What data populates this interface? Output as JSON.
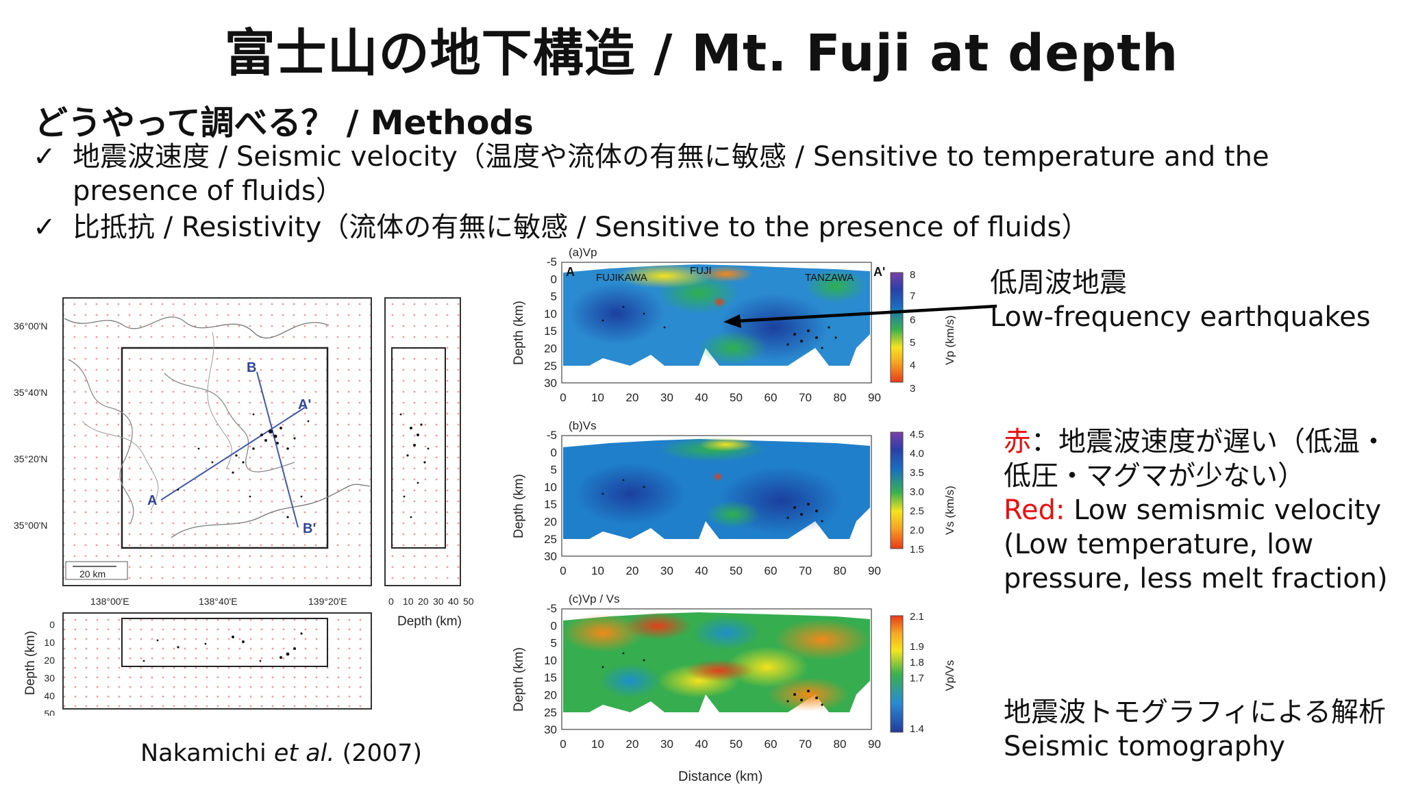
{
  "title": "富士山の地下構造 / Mt. Fuji at depth",
  "subheading": "どうやって調べる？ / Methods",
  "bullets": [
    {
      "check": "✓",
      "text": "地震波速度 / Seismic velocity（温度や流体の有無に敏感 / Sensitive to temperature and the presence of fluids）"
    },
    {
      "check": "✓",
      "text": "比抵抗 / Resistivity（流体の有無に敏感 / Sensitive to the presence of fluids）"
    }
  ],
  "annotation_lf": {
    "jp": "低周波地震",
    "en": "Low-frequency earthquakes"
  },
  "annotation_red": {
    "red_label_jp": "赤",
    "jp": "：地震波速度が遅い（低温・低圧・マグマが少ない）",
    "red_label_en": "Red:",
    "en": " Low semismic velocity (Low temperature, low pressure, less melt fraction)"
  },
  "annotation_tomo": {
    "jp": "地震波トモグラフィによる解析",
    "en": "Seismic tomography"
  },
  "citation": {
    "author": "Nakamichi",
    "etal": "et al.",
    "year": "(2007)"
  },
  "map": {
    "lat_labels": [
      "36°00'N",
      "35°40'N",
      "35°20'N",
      "35°00'N"
    ],
    "lon_labels": [
      "138°00'E",
      "138°40'E",
      "139°20'E"
    ],
    "scale_label": "20 km",
    "points": {
      "A": "A",
      "A_prime": "A'",
      "B": "B",
      "B_prime": "B'"
    },
    "side_depth_ticks": [
      "0",
      "10",
      "20",
      "30",
      "40",
      "50"
    ],
    "side_xlabel": "Depth (km)",
    "bottom_depth_ticks": [
      "0",
      "10",
      "20",
      "30",
      "40",
      "50"
    ],
    "bottom_ylabel": "Depth (km)"
  },
  "panels": [
    {
      "label": "(a)Vp",
      "left_label": "A",
      "right_label": "A'",
      "places": [
        "FUJIKAWA",
        "FUJI",
        "TANZAWA"
      ],
      "colorbar_ticks": [
        "8",
        "7",
        "6",
        "5",
        "4",
        "3"
      ],
      "colorbar_label": "Vp (km/s)"
    },
    {
      "label": "(b)Vs",
      "colorbar_ticks": [
        "4.5",
        "4.0",
        "3.5",
        "3.0",
        "2.5",
        "2.0",
        "1.5"
      ],
      "colorbar_label": "Vs (km/s)"
    },
    {
      "label": "(c)Vp / Vs",
      "colorbar_ticks": [
        "2.1",
        "1.9",
        "1.8",
        "1.7",
        "1.4"
      ],
      "colorbar_label": "Vp/Vs"
    }
  ],
  "section_axes": {
    "depth_ticks": [
      "-5",
      "0",
      "5",
      "10",
      "15",
      "20",
      "25",
      "30"
    ],
    "distance_ticks": [
      "0",
      "10",
      "20",
      "30",
      "40",
      "50",
      "60",
      "70",
      "80",
      "90"
    ],
    "ylabel": "Depth (km)",
    "xlabel": "Distance (km)"
  }
}
